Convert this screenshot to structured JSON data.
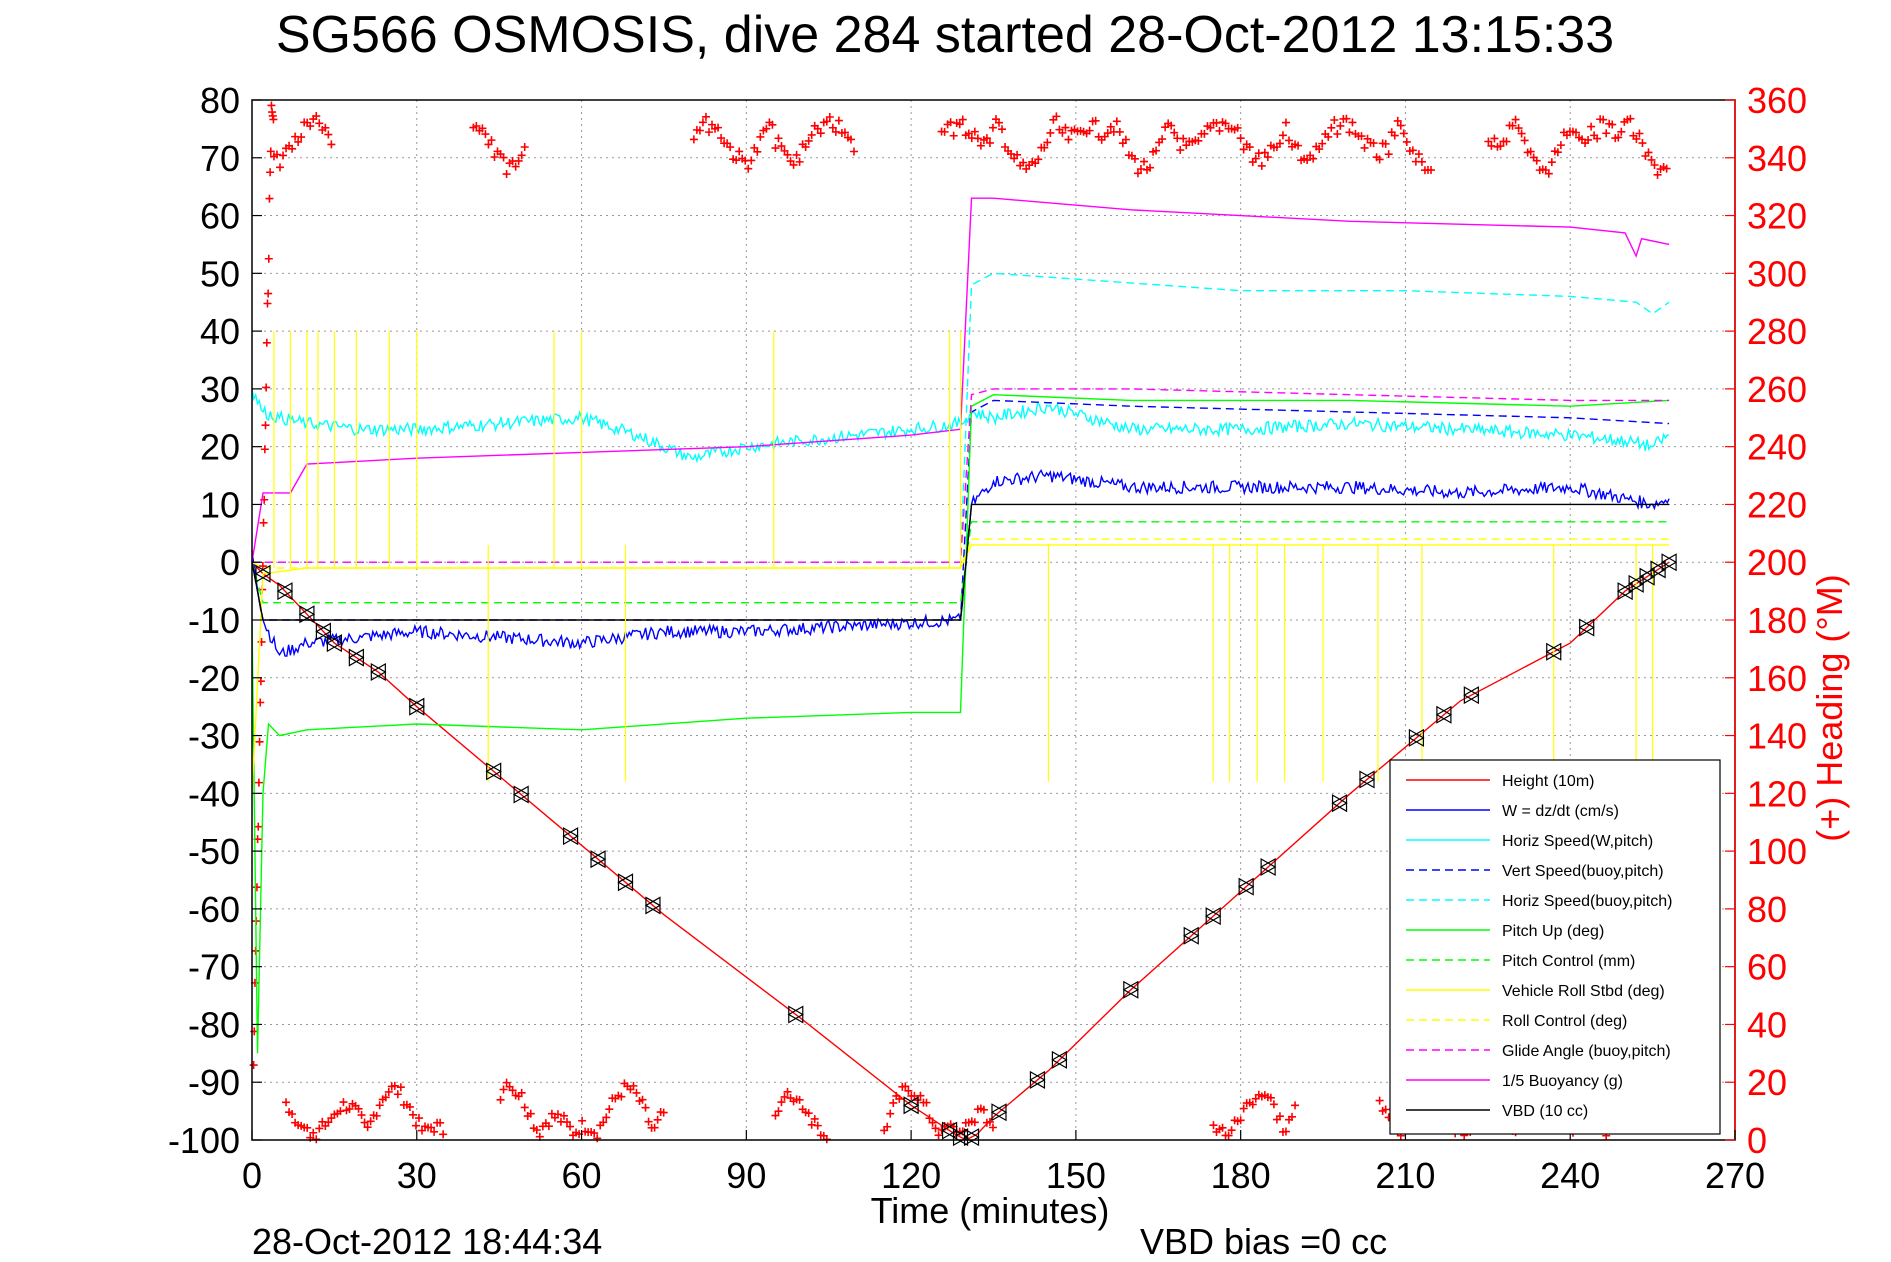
{
  "chart_data": {
    "type": "line",
    "title": "SG566 OSMOSIS, dive 284 started 28-Oct-2012 13:15:33",
    "xlabel": "Time (minutes)",
    "ylabel_right": "(+) Heading (°M)",
    "footer_left": "28-Oct-2012 18:44:34",
    "footer_right": "VBD bias =0 cc",
    "xlim": [
      0,
      270
    ],
    "ylim": [
      -100,
      80
    ],
    "y2lim": [
      0,
      360
    ],
    "x_ticks": [
      0,
      30,
      60,
      90,
      120,
      150,
      180,
      210,
      240,
      270
    ],
    "y_ticks": [
      -100,
      -90,
      -80,
      -70,
      -60,
      -50,
      -40,
      -30,
      -20,
      -10,
      0,
      10,
      20,
      30,
      40,
      50,
      60,
      70,
      80
    ],
    "y2_ticks": [
      0,
      20,
      40,
      60,
      80,
      100,
      120,
      140,
      160,
      180,
      200,
      220,
      240,
      260,
      280,
      300,
      320,
      340,
      360
    ],
    "grid": true,
    "legend_position": "bottom-right",
    "colors": {
      "right_axis": "#ff0000"
    },
    "series": [
      {
        "name": "Height (10m)",
        "color": "#ff0000",
        "style": "solid",
        "x": [
          0,
          1,
          2,
          5,
          10,
          15,
          23,
          30,
          45,
          60,
          75,
          100,
          120,
          128,
          130,
          132,
          135,
          145,
          160,
          180,
          200,
          220,
          240,
          250,
          258
        ],
        "y": [
          0,
          -1,
          -2,
          -4,
          -9,
          -14,
          -19,
          -25,
          -37,
          -49,
          -61,
          -79,
          -94,
          -99,
          -100,
          -99,
          -96,
          -88,
          -74,
          -57,
          -40,
          -24,
          -14,
          -5,
          0
        ]
      },
      {
        "name": "W = dz/dt (cm/s)",
        "color": "#0000ff",
        "style": "solid",
        "x": [
          0,
          2,
          5,
          10,
          20,
          30,
          45,
          60,
          75,
          90,
          110,
          129,
          131,
          135,
          145,
          160,
          180,
          200,
          220,
          240,
          250,
          255,
          258
        ],
        "y": [
          2,
          -10,
          -16,
          -14,
          -13,
          -12,
          -13,
          -14,
          -12,
          -12,
          -11,
          -10,
          10,
          14,
          15,
          13,
          13,
          13,
          12,
          13,
          11,
          10,
          11
        ]
      },
      {
        "name": "Horiz Speed(W,pitch)",
        "color": "#00ffff",
        "style": "solid",
        "x": [
          0,
          2,
          5,
          10,
          20,
          30,
          45,
          60,
          70,
          80,
          90,
          100,
          120,
          129,
          131,
          135,
          145,
          160,
          180,
          200,
          220,
          240,
          250,
          255,
          258
        ],
        "y": [
          30,
          26,
          25,
          24,
          23,
          23,
          24,
          25,
          22,
          18,
          20,
          21,
          23,
          24,
          26,
          25,
          27,
          23,
          23,
          24,
          23,
          22,
          21,
          20,
          22
        ]
      },
      {
        "name": "Vert Speed(buoy,pitch)",
        "color": "#0000ff",
        "style": "dashed",
        "x": [
          0,
          2,
          10,
          60,
          129,
          131,
          135,
          160,
          200,
          240,
          258
        ],
        "y": [
          0,
          -10,
          -10,
          -10,
          -10,
          26,
          28,
          27,
          26,
          25,
          24
        ]
      },
      {
        "name": "Horiz Speed(buoy,pitch)",
        "color": "#00ffff",
        "style": "dashed",
        "x": [
          0,
          2,
          129,
          131,
          135,
          150,
          180,
          210,
          240,
          252,
          255,
          258
        ],
        "y": [
          0,
          0,
          0,
          48,
          50,
          49,
          47,
          47,
          46,
          45,
          43,
          45
        ]
      },
      {
        "name": "Pitch Up (deg)",
        "color": "#00ff00",
        "style": "solid",
        "x": [
          0,
          1,
          2,
          3,
          5,
          10,
          30,
          60,
          90,
          120,
          129,
          131,
          135,
          160,
          200,
          240,
          258
        ],
        "y": [
          -10,
          -85,
          -40,
          -28,
          -30,
          -29,
          -28,
          -29,
          -27,
          -26,
          -26,
          27,
          29,
          28,
          28,
          27,
          28
        ]
      },
      {
        "name": "Pitch Control (mm)",
        "color": "#00ff00",
        "style": "dashed",
        "x": [
          0,
          2,
          10,
          60,
          129,
          131,
          160,
          200,
          258
        ],
        "y": [
          0,
          -7,
          -7,
          -7,
          -7,
          7,
          7,
          7,
          7
        ]
      },
      {
        "name": "Vehicle Roll Stbd (deg)",
        "color": "#ffff00",
        "style": "solid",
        "x": [
          0,
          2,
          10,
          30,
          60,
          90,
          120,
          129,
          131,
          160,
          200,
          240,
          258
        ],
        "y": [
          -40,
          -2,
          -1,
          -1,
          -1,
          -1,
          -1,
          -1,
          3,
          3,
          3,
          3,
          3
        ]
      },
      {
        "name": "Roll Control (deg)",
        "color": "#ffff00",
        "style": "dashed",
        "x": [
          0,
          2,
          10,
          60,
          129,
          131,
          200,
          258
        ],
        "y": [
          0,
          -1,
          -1,
          -1,
          -1,
          4,
          4,
          4
        ]
      },
      {
        "name": "Glide Angle (buoy,pitch)",
        "color": "#ff00ff",
        "style": "dashed",
        "x": [
          0,
          2,
          129,
          131,
          135,
          160,
          200,
          240,
          258
        ],
        "y": [
          0,
          0,
          0,
          29,
          30,
          30,
          29,
          28,
          28
        ]
      },
      {
        "name": "1/5 Buoyancy (g)",
        "color": "#ff00ff",
        "style": "solid",
        "x": [
          0,
          2,
          3,
          7,
          10,
          30,
          60,
          90,
          120,
          129,
          131,
          135,
          160,
          200,
          240,
          250,
          252,
          253,
          258
        ],
        "y": [
          0,
          12,
          12,
          12,
          17,
          18,
          19,
          20,
          22,
          23,
          63,
          63,
          61,
          59,
          58,
          57,
          53,
          56,
          55
        ]
      },
      {
        "name": "VBD (10 cc)",
        "color": "#000000",
        "style": "solid",
        "x": [
          0,
          2,
          10,
          60,
          129,
          131,
          258
        ],
        "y": [
          0,
          -10,
          -10,
          -10,
          -10,
          10,
          10
        ]
      }
    ],
    "heading_series": {
      "color": "#ff0000",
      "marker": "+",
      "axis": "right"
    }
  }
}
